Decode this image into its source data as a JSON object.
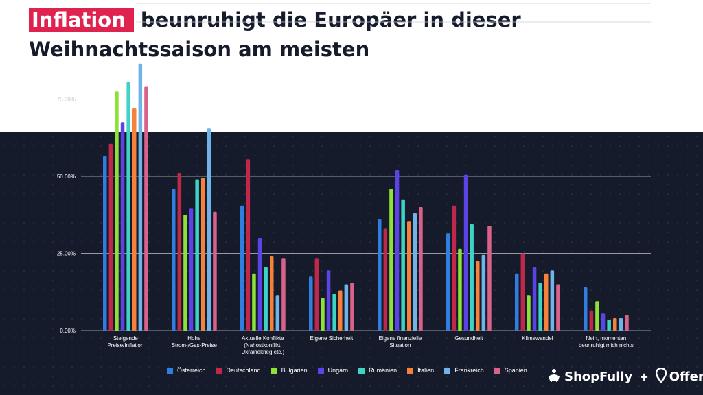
{
  "title": {
    "highlight": "Inflation",
    "line1_rest": "beunruhigt die Europäer in dieser",
    "line2": "Weihnachtssaison am meisten"
  },
  "colors": {
    "background_dark": "#161b2b",
    "highlight": "#e0234e",
    "series": [
      "#2f7ee0",
      "#c0284b",
      "#8de23a",
      "#5a44e6",
      "#3fd3c6",
      "#f5813a",
      "#6fb3e8",
      "#d8628a"
    ]
  },
  "chart_data": {
    "type": "bar",
    "categories": [
      [
        "Steigende",
        "Preise/Inflation"
      ],
      [
        "Hohe",
        "Strom-/Gas-Preise"
      ],
      [
        "Aktuelle Konflikte",
        "(Nahostkonflikt,",
        "Ukrainekrieg etc.)"
      ],
      [
        "Eigene Sicherheit"
      ],
      [
        "Eigene finanzielle",
        "Situation"
      ],
      [
        "Gesundheit"
      ],
      [
        "Klimawandel"
      ],
      [
        "Nein, momentan",
        "beunruhigt mich nichts"
      ]
    ],
    "series": [
      {
        "name": "Österreich",
        "values": [
          56.5,
          46,
          40.5,
          17.5,
          36,
          31.5,
          18.5,
          14
        ]
      },
      {
        "name": "Deutschland",
        "values": [
          60.5,
          51,
          55.5,
          23.5,
          33,
          40.5,
          25,
          6.5
        ]
      },
      {
        "name": "Bulgarien",
        "values": [
          77.5,
          37.5,
          18.5,
          10.5,
          46,
          26.5,
          11.5,
          9.5
        ]
      },
      {
        "name": "Ungarn",
        "values": [
          67.5,
          39.5,
          30,
          19.5,
          52,
          50.5,
          20.5,
          5.5
        ]
      },
      {
        "name": "Rumänien",
        "values": [
          80.5,
          49,
          20.5,
          12,
          42.5,
          34.5,
          15.5,
          3.5
        ]
      },
      {
        "name": "Italien",
        "values": [
          72,
          49.5,
          24,
          13,
          35.5,
          22.5,
          18.5,
          4
        ]
      },
      {
        "name": "Frankreich",
        "values": [
          86.5,
          65.5,
          11.5,
          15,
          38,
          24.5,
          19.5,
          4
        ]
      },
      {
        "name": "Spanien",
        "values": [
          79,
          38.5,
          23.5,
          15.5,
          40,
          34,
          15,
          5
        ]
      }
    ],
    "y_ticks": [
      "0.00%",
      "25.00%",
      "50.00%",
      "75.00%"
    ],
    "ylim": [
      0,
      100
    ],
    "xlabel": "",
    "ylabel": "",
    "legend_position": "bottom"
  },
  "brand": {
    "name1": "ShopFully",
    "plus": "+",
    "name2": "Offerista"
  }
}
